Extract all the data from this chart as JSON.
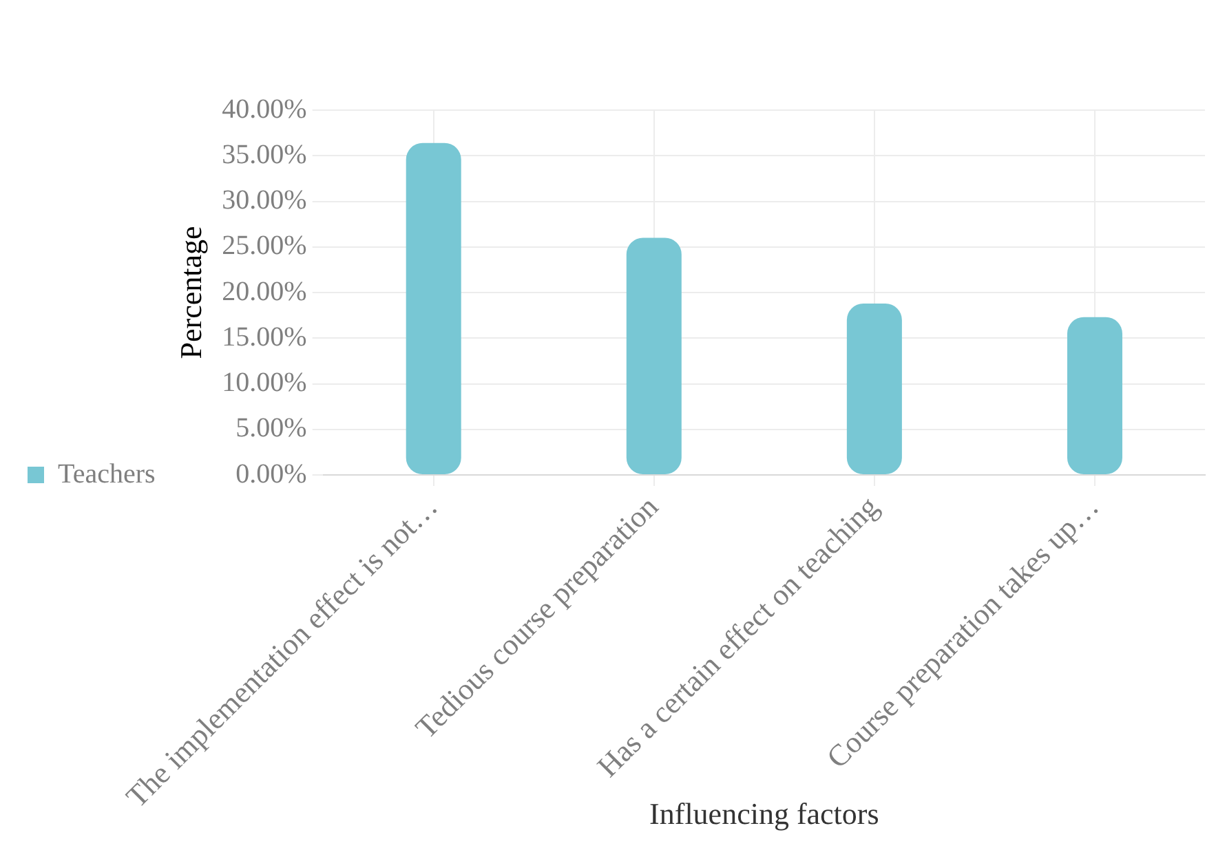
{
  "chart_data": {
    "type": "bar",
    "xlabel": "Influencing factors",
    "ylabel": "Percentage",
    "categories": [
      "The implementation effect is not…",
      "Tedious course preparation",
      "Has a certain effect on teaching",
      "Course preparation takes up…"
    ],
    "series": [
      {
        "name": "Teachers",
        "color": "#78c7d4",
        "values": [
          36.4,
          26.0,
          18.8,
          17.3
        ]
      }
    ],
    "ylim": [
      0,
      40
    ],
    "yticks": [
      {
        "value": 0,
        "label": "0.00%"
      },
      {
        "value": 5,
        "label": "5.00%"
      },
      {
        "value": 10,
        "label": "10.00%"
      },
      {
        "value": 15,
        "label": "15.00%"
      },
      {
        "value": 20,
        "label": "20.00%"
      },
      {
        "value": 25,
        "label": "25.00%"
      },
      {
        "value": 30,
        "label": "30.00%"
      },
      {
        "value": 35,
        "label": "35.00%"
      },
      {
        "value": 40,
        "label": "40.00%"
      }
    ],
    "grid": true,
    "legend": "left"
  }
}
